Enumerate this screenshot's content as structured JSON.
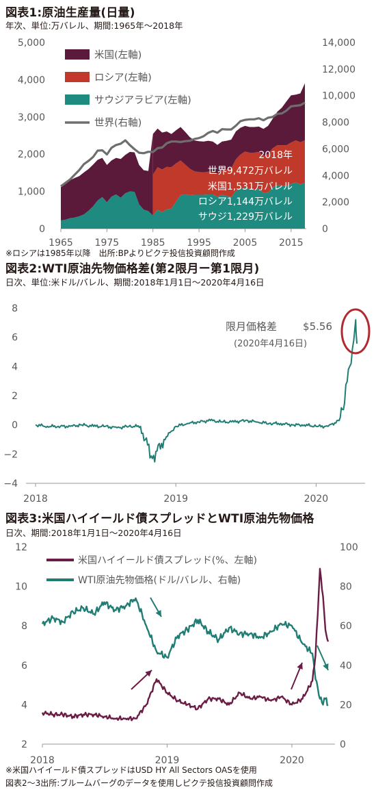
{
  "chart1": {
    "title": "図表1:原油生産量(日量)",
    "subtitle": "年次、単位:万バレル、期間:1965年〜2018年",
    "note": "※ロシアは1985年以降　出所:BPよりピクテ投信投資顧問作成"
  },
  "chart2": {
    "title": "図表2:WTI原油先物価格差(第2限月ー第1限月)",
    "subtitle": "日次、単位:米ドル/バレル、期間:2018年1月1日〜2020年4月16日"
  },
  "chart3": {
    "title": "図表3:米国ハイイールド債スプレッドとWTI原油先物価格",
    "subtitle": "日次、期間:2018年1月1日〜2020年4月16日",
    "note1": "※米国ハイイールド債スプレッドはUSD HY All Sectors OASを使用",
    "note2": "図表2〜3出所:ブルームバーグのデータを使用しピクテ投信投資顧問作成"
  },
  "colors": {
    "usa": "#5c1a3b",
    "russia": "#c0392b",
    "saudi": "#1f8a7f",
    "world": "#6e6e6e",
    "teal_line": "#1f7d73",
    "spread_line": "#6a1c44",
    "circle": "#b02a30"
  },
  "chart_data": [
    {
      "type": "area",
      "title": "図表1:原油生産量(日量)",
      "x_ticks": [
        "1965",
        "1975",
        "1985",
        "1995",
        "2005",
        "2015"
      ],
      "y_left_ticks": [
        "0",
        "1,000",
        "2,000",
        "3,000",
        "4,000",
        "5,000"
      ],
      "y_right_ticks": [
        "0",
        "2,000",
        "4,000",
        "6,000",
        "8,000",
        "10,000",
        "12,000",
        "14,000"
      ],
      "ylim_left": [
        0,
        5000
      ],
      "ylim_right": [
        0,
        14000
      ],
      "legend": [
        "米国(左軸)",
        "ロシア(左軸)",
        "サウジアラビア(左軸)",
        "世界(右軸)"
      ],
      "annotations": [
        "2018年",
        "世界9,472万バレル",
        "米国1,531万バレル",
        "ロシア1,144万バレル",
        "サウジ1,229万バレル"
      ],
      "x": [
        1965,
        1966,
        1967,
        1968,
        1969,
        1970,
        1971,
        1972,
        1973,
        1974,
        1975,
        1976,
        1977,
        1978,
        1979,
        1980,
        1981,
        1982,
        1983,
        1984,
        1985,
        1986,
        1987,
        1988,
        1989,
        1990,
        1991,
        1992,
        1993,
        1994,
        1995,
        1996,
        1997,
        1998,
        1999,
        2000,
        2001,
        2002,
        2003,
        2004,
        2005,
        2006,
        2007,
        2008,
        2009,
        2010,
        2011,
        2012,
        2013,
        2014,
        2015,
        2016,
        2017,
        2018
      ],
      "series": [
        {
          "name": "サウジアラビア(左軸)",
          "axis": "left",
          "values": [
            220,
            240,
            280,
            300,
            330,
            380,
            480,
            600,
            760,
            850,
            710,
            860,
            920,
            830,
            950,
            1000,
            990,
            650,
            510,
            470,
            350,
            510,
            440,
            520,
            540,
            720,
            900,
            920,
            900,
            910,
            910,
            910,
            920,
            920,
            860,
            910,
            880,
            850,
            1010,
            1060,
            1110,
            1060,
            1040,
            1070,
            960,
            970,
            1110,
            1170,
            1160,
            1150,
            1200,
            1240,
            1190,
            1229
          ]
        },
        {
          "name": "ロシア(左軸)",
          "axis": "left",
          "values": [
            null,
            null,
            null,
            null,
            null,
            null,
            null,
            null,
            null,
            null,
            null,
            null,
            null,
            null,
            null,
            null,
            null,
            null,
            null,
            null,
            1100,
            1140,
            1150,
            1140,
            1110,
            1030,
            930,
            800,
            710,
            630,
            610,
            600,
            610,
            610,
            620,
            660,
            710,
            770,
            850,
            930,
            960,
            980,
            1000,
            990,
            1000,
            1030,
            1050,
            1070,
            1080,
            1090,
            1110,
            1130,
            1130,
            1144
          ]
        },
        {
          "name": "米国(左軸)",
          "axis": "left",
          "values": [
            900,
            970,
            1020,
            1060,
            1080,
            1130,
            1120,
            1120,
            1090,
            1050,
            1000,
            970,
            980,
            1040,
            1030,
            1060,
            1060,
            1060,
            1060,
            1080,
            1090,
            1040,
            990,
            950,
            890,
            890,
            900,
            880,
            850,
            830,
            830,
            830,
            830,
            810,
            770,
            770,
            770,
            770,
            750,
            720,
            690,
            690,
            690,
            680,
            720,
            760,
            790,
            900,
            1010,
            1180,
            1270,
            1230,
            1310,
            1531
          ]
        },
        {
          "name": "世界(右軸)",
          "axis": "right",
          "values": [
            3180,
            3440,
            3700,
            4050,
            4400,
            4850,
            5090,
            5390,
            5870,
            5890,
            5580,
            6080,
            6290,
            6390,
            6640,
            6280,
            5970,
            5710,
            5670,
            5780,
            5760,
            6050,
            6100,
            6420,
            6550,
            6550,
            6510,
            6580,
            6610,
            6740,
            6810,
            6950,
            7200,
            7340,
            7210,
            7480,
            7460,
            7460,
            7740,
            8080,
            8180,
            8220,
            8220,
            8300,
            8150,
            8340,
            8400,
            8630,
            8660,
            8880,
            9200,
            9240,
            9280,
            9472
          ]
        }
      ]
    },
    {
      "type": "line",
      "title": "図表2:WTI原油先物価格差(第2限月ー第1限月)",
      "x_ticks": [
        "2018",
        "2019",
        "2020"
      ],
      "y_ticks": [
        "-4",
        "-2",
        "0",
        "2",
        "4",
        "6",
        "8"
      ],
      "ylim": [
        -4,
        8
      ],
      "xlim": [
        "2018-01-01",
        "2020-04-16"
      ],
      "annotation_label": "限月価格差",
      "annotation_value": "$5.56",
      "annotation_date": "(2020年4月16日)",
      "x": [
        "2018-01-01",
        "2018-02-01",
        "2018-03-01",
        "2018-04-01",
        "2018-05-01",
        "2018-06-01",
        "2018-07-01",
        "2018-08-01",
        "2018-09-01",
        "2018-10-01",
        "2018-11-01",
        "2018-12-01",
        "2019-01-01",
        "2019-02-01",
        "2019-03-01",
        "2019-04-01",
        "2019-05-01",
        "2019-06-01",
        "2019-07-01",
        "2019-08-01",
        "2019-09-01",
        "2019-10-01",
        "2019-11-01",
        "2019-12-01",
        "2020-01-01",
        "2020-02-01",
        "2020-03-01",
        "2020-03-15",
        "2020-03-25",
        "2020-04-01",
        "2020-04-08",
        "2020-04-13",
        "2020-04-15",
        "2020-04-16"
      ],
      "values": [
        0.0,
        -0.1,
        -0.1,
        -0.1,
        0.0,
        -0.1,
        -0.1,
        -0.2,
        -0.1,
        -0.1,
        -2.3,
        -1.0,
        -0.1,
        0.1,
        0.2,
        0.3,
        0.2,
        0.2,
        0.3,
        0.2,
        0.1,
        0.1,
        0.0,
        0.0,
        -0.1,
        -0.1,
        0.3,
        1.5,
        3.8,
        4.2,
        5.8,
        7.2,
        6.0,
        5.56
      ]
    },
    {
      "type": "line",
      "title": "図表3:米国ハイイールド債スプレッドとWTI原油先物価格",
      "x_ticks": [
        "2018",
        "2019",
        "2020"
      ],
      "y_left_ticks": [
        "2",
        "4",
        "6",
        "8",
        "10",
        "12"
      ],
      "y_right_ticks": [
        "0",
        "20",
        "40",
        "60",
        "80",
        "100"
      ],
      "ylim_left": [
        2,
        12
      ],
      "ylim_right": [
        0,
        100
      ],
      "xlim": [
        "2018-01-01",
        "2020-04-16"
      ],
      "legend": [
        "米国ハイイールド債スプレッド(%、左軸)",
        "WTI原油先物価格(ドル/バレル、右軸)"
      ],
      "x": [
        "2018-01-01",
        "2018-02-01",
        "2018-03-01",
        "2018-04-01",
        "2018-05-01",
        "2018-06-01",
        "2018-07-01",
        "2018-08-01",
        "2018-09-01",
        "2018-10-01",
        "2018-11-01",
        "2018-12-01",
        "2019-01-01",
        "2019-02-01",
        "2019-03-01",
        "2019-04-01",
        "2019-05-01",
        "2019-06-01",
        "2019-07-01",
        "2019-08-01",
        "2019-09-01",
        "2019-10-01",
        "2019-11-01",
        "2019-12-01",
        "2020-01-01",
        "2020-02-01",
        "2020-03-01",
        "2020-03-10",
        "2020-03-23",
        "2020-04-01",
        "2020-04-08",
        "2020-04-16"
      ],
      "series": [
        {
          "name": "米国ハイイールド債スプレッド(%、左軸)",
          "axis": "left",
          "values": [
            3.6,
            3.5,
            3.5,
            3.4,
            3.5,
            3.5,
            3.4,
            3.3,
            3.3,
            3.3,
            4.0,
            5.3,
            4.6,
            4.2,
            4.0,
            3.8,
            4.3,
            4.3,
            4.0,
            4.6,
            4.3,
            4.4,
            4.2,
            4.4,
            4.0,
            4.3,
            5.2,
            6.5,
            10.9,
            9.5,
            7.8,
            7.2
          ]
        },
        {
          "name": "WTI原油先物価格(ドル/バレル、右軸)",
          "axis": "right",
          "values": [
            61,
            64,
            62,
            67,
            69,
            66,
            72,
            68,
            70,
            74,
            60,
            47,
            44,
            55,
            58,
            63,
            57,
            53,
            59,
            56,
            56,
            54,
            57,
            61,
            60,
            51,
            46,
            33,
            23,
            20,
            23,
            20
          ]
        }
      ]
    }
  ]
}
